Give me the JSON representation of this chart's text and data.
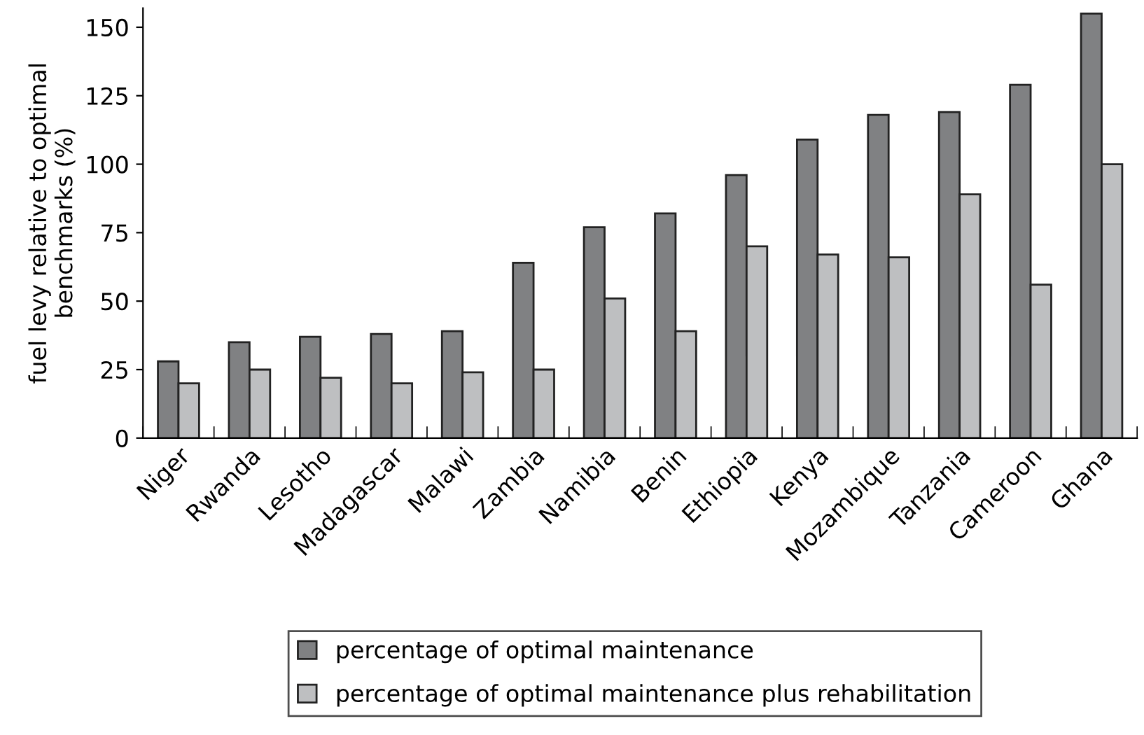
{
  "chart_data": {
    "type": "bar",
    "ylabel": "fuel levy relative to optimal\nbenchmarks (%)",
    "categories": [
      "Niger",
      "Rwanda",
      "Lesotho",
      "Madagascar",
      "Malawi",
      "Zambia",
      "Namibia",
      "Benin",
      "Ethiopia",
      "Kenya",
      "Mozambique",
      "Tanzania",
      "Cameroon",
      "Ghana"
    ],
    "series": [
      {
        "name": "percentage of optimal maintenance",
        "color": "#808183",
        "values": [
          28,
          35,
          37,
          38,
          39,
          64,
          77,
          82,
          96,
          109,
          118,
          119,
          129,
          155
        ]
      },
      {
        "name": "percentage of optimal maintenance plus rehabilitation",
        "color": "#bebfc1",
        "values": [
          20,
          25,
          22,
          20,
          24,
          25,
          51,
          39,
          70,
          67,
          66,
          89,
          56,
          100
        ]
      }
    ],
    "ylim": [
      0,
      157
    ],
    "yticks": [
      0,
      25,
      50,
      75,
      100,
      125,
      150
    ],
    "grid": false,
    "legend": "bottom"
  }
}
